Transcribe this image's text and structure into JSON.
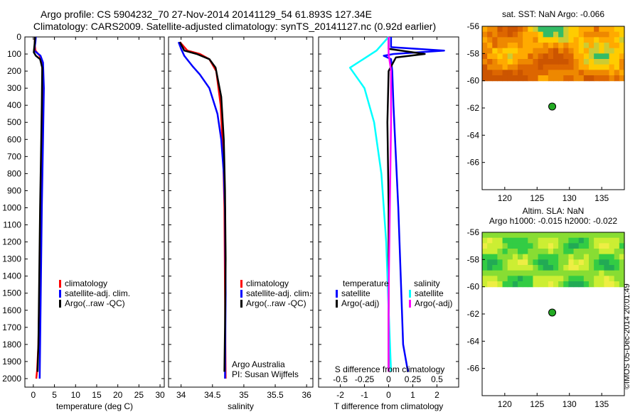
{
  "title_line1": "Argo profile: CS 5904232_70 27-Nov-2014 20141129_54 61.893S 127.34E",
  "title_line2": "Climatology: CARS2009. Satellite-adjusted climatology: synTS_20141127.nc (0.92d earlier)",
  "credit": "©IMOS 05-Dec-2014 20:01:49",
  "colors": {
    "climatology": "#ff0000",
    "satellite": "#0000ff",
    "argo": "#000000",
    "salinity_satellite": "#00ffff",
    "salinity_argo": "#ff00ff",
    "float_marker": "#22aa22"
  },
  "depth_axis": {
    "range": [
      0,
      2050
    ],
    "ticks": [
      0,
      100,
      200,
      300,
      400,
      500,
      600,
      700,
      800,
      900,
      1000,
      1100,
      1200,
      1300,
      1400,
      1500,
      1600,
      1700,
      1800,
      1900,
      2000
    ],
    "reversed": true
  },
  "chart_data": [
    {
      "type": "line",
      "id": "temperature",
      "xlabel": "temperature (deg C)",
      "xlim": [
        -2,
        31
      ],
      "xticks": [
        0,
        5,
        10,
        15,
        20,
        25,
        30
      ],
      "legend": [
        "climatology",
        "satellite-adj. clim.",
        "Argo(..raw -QC)"
      ],
      "series": [
        {
          "name": "climatology",
          "color_key": "climatology",
          "points": [
            [
              0.4,
              0
            ],
            [
              0.3,
              40
            ],
            [
              0.5,
              80
            ],
            [
              1.5,
              110
            ],
            [
              2.1,
              150
            ],
            [
              2.2,
              300
            ],
            [
              2.0,
              600
            ],
            [
              1.8,
              1000
            ],
            [
              1.5,
              1400
            ],
            [
              1.2,
              1800
            ],
            [
              0.9,
              1950
            ],
            [
              0.7,
              2000
            ]
          ]
        },
        {
          "name": "satellite-adj. clim.",
          "color_key": "satellite",
          "points": [
            [
              0.6,
              0
            ],
            [
              0.5,
              30
            ],
            [
              0.2,
              80
            ],
            [
              1.7,
              110
            ],
            [
              2.3,
              150
            ],
            [
              2.5,
              300
            ],
            [
              2.3,
              600
            ],
            [
              2.0,
              1000
            ],
            [
              1.8,
              1400
            ],
            [
              1.6,
              1800
            ],
            [
              1.5,
              2000
            ]
          ]
        },
        {
          "name": "Argo(..raw -QC)",
          "color_key": "argo",
          "points": [
            [
              0.4,
              0
            ],
            [
              0.3,
              40
            ],
            [
              0.1,
              90
            ],
            [
              0.6,
              110
            ],
            [
              1.6,
              130
            ],
            [
              2.1,
              180
            ],
            [
              2.0,
              400
            ],
            [
              1.8,
              700
            ],
            [
              1.6,
              1000
            ],
            [
              1.4,
              1400
            ],
            [
              1.2,
              1800
            ],
            [
              1.0,
              1960
            ]
          ]
        }
      ]
    },
    {
      "type": "line",
      "id": "salinity",
      "xlabel": "salinity",
      "xlim": [
        33.8,
        36.1
      ],
      "xticks": [
        34,
        34.5,
        35,
        35.5,
        36
      ],
      "legend": [
        "climatology",
        "satellite-adj. clim.",
        "Argo(..raw -QC)"
      ],
      "annotation": [
        "Argo Australia",
        "PI: Susan Wijffels"
      ],
      "series": [
        {
          "name": "climatology",
          "color_key": "climatology",
          "points": [
            [
              33.98,
              30
            ],
            [
              34.1,
              80
            ],
            [
              34.3,
              100
            ],
            [
              34.45,
              130
            ],
            [
              34.56,
              200
            ],
            [
              34.63,
              400
            ],
            [
              34.67,
              700
            ],
            [
              34.69,
              1000
            ],
            [
              34.7,
              1500
            ],
            [
              34.71,
              2000
            ]
          ]
        },
        {
          "name": "satellite-adj. clim.",
          "color_key": "satellite",
          "points": [
            [
              33.96,
              30
            ],
            [
              34.0,
              70
            ],
            [
              34.05,
              110
            ],
            [
              34.18,
              170
            ],
            [
              34.3,
              220
            ],
            [
              34.45,
              300
            ],
            [
              34.58,
              450
            ],
            [
              34.64,
              600
            ],
            [
              34.68,
              800
            ],
            [
              34.7,
              1000
            ],
            [
              34.71,
              1500
            ],
            [
              34.7,
              2000
            ]
          ]
        },
        {
          "name": "Argo(..raw -QC)",
          "color_key": "argo",
          "points": [
            [
              33.98,
              30
            ],
            [
              34.05,
              80
            ],
            [
              34.25,
              100
            ],
            [
              34.45,
              130
            ],
            [
              34.55,
              180
            ],
            [
              34.64,
              350
            ],
            [
              34.68,
              600
            ],
            [
              34.7,
              900
            ],
            [
              34.71,
              1300
            ],
            [
              34.7,
              1700
            ],
            [
              34.69,
              1960
            ]
          ]
        }
      ]
    },
    {
      "type": "line",
      "id": "difference",
      "xlabel": "T difference from climatology",
      "xlabel_top": "S difference from climatology",
      "xlim": [
        -2.9,
        2.9
      ],
      "xticks": [
        -2,
        -1,
        0,
        1,
        2
      ],
      "xticks_top": [
        "-0.5",
        "-0.25",
        "0",
        "0.25",
        "0.5"
      ],
      "legend_groups": [
        {
          "title": "temperature",
          "items": [
            {
              "name": "satellite",
              "color_key": "satellite"
            },
            {
              "name": "Argo(-adj)",
              "color_key": "argo"
            }
          ]
        },
        {
          "title": "salinity",
          "items": [
            {
              "name": "satellite",
              "color_key": "salinity_satellite"
            },
            {
              "name": "Argo(-adj)",
              "color_key": "salinity_argo"
            }
          ]
        }
      ],
      "series": [
        {
          "name": "temperature satellite",
          "color_key": "satellite",
          "points": [
            [
              0.1,
              0
            ],
            [
              0.1,
              60
            ],
            [
              2.3,
              80
            ],
            [
              0.2,
              100
            ],
            [
              -0.2,
              110
            ],
            [
              0.1,
              130
            ],
            [
              0.15,
              200
            ],
            [
              0.2,
              400
            ],
            [
              0.3,
              700
            ],
            [
              0.4,
              1000
            ],
            [
              0.5,
              1400
            ],
            [
              0.6,
              1800
            ],
            [
              0.8,
              1960
            ]
          ]
        },
        {
          "name": "temperature Argo(-adj)",
          "color_key": "argo",
          "points": [
            [
              0.0,
              0
            ],
            [
              0.0,
              70
            ],
            [
              1.0,
              90
            ],
            [
              1.5,
              100
            ],
            [
              0.3,
              120
            ],
            [
              0.0,
              200
            ],
            [
              -0.05,
              500
            ],
            [
              0.0,
              1000
            ],
            [
              0.0,
              1500
            ],
            [
              0.0,
              1960
            ]
          ]
        },
        {
          "name": "salinity satellite",
          "color_key": "salinity_satellite",
          "points": [
            [
              0.0,
              0
            ],
            [
              -0.5,
              80
            ],
            [
              -1.6,
              180
            ],
            [
              -1.0,
              300
            ],
            [
              -0.6,
              500
            ],
            [
              -0.3,
              800
            ],
            [
              -0.1,
              1200
            ],
            [
              0.0,
              1600
            ],
            [
              0.1,
              1960
            ]
          ]
        },
        {
          "name": "salinity Argo(-adj)",
          "color_key": "salinity_argo",
          "points": [
            [
              0.0,
              0
            ],
            [
              0.0,
              100
            ],
            [
              0.1,
              200
            ],
            [
              0.1,
              500
            ],
            [
              0.05,
              1000
            ],
            [
              0.0,
              1500
            ],
            [
              0.0,
              1960
            ]
          ]
        }
      ]
    },
    {
      "type": "heatmap",
      "id": "sst_map",
      "title": "sat. SST: NaN Argo: -0.066",
      "xlim": [
        116.5,
        138.5
      ],
      "ylim": [
        -68,
        -56
      ],
      "xticks": [
        120,
        125,
        130,
        135
      ],
      "yticks": [
        -56,
        -58,
        -60,
        -62,
        -64,
        -66
      ],
      "data_extent_lat": [
        -60,
        -56
      ],
      "float_position": {
        "lon": 127.34,
        "lat": -61.893
      }
    },
    {
      "type": "heatmap",
      "id": "sla_map",
      "title": "Altim. SLA: NaN",
      "subtitle": "Argo h1000: -0.015 h2000: -0.022",
      "xlim": [
        116.5,
        138.5
      ],
      "ylim": [
        -68,
        -56
      ],
      "xticks": [
        120,
        125,
        130,
        135
      ],
      "yticks": [
        -56,
        -58,
        -60,
        -62,
        -64,
        -66
      ],
      "data_extent_lat": [
        -60,
        -56
      ],
      "float_position": {
        "lon": 127.34,
        "lat": -61.893
      }
    }
  ]
}
